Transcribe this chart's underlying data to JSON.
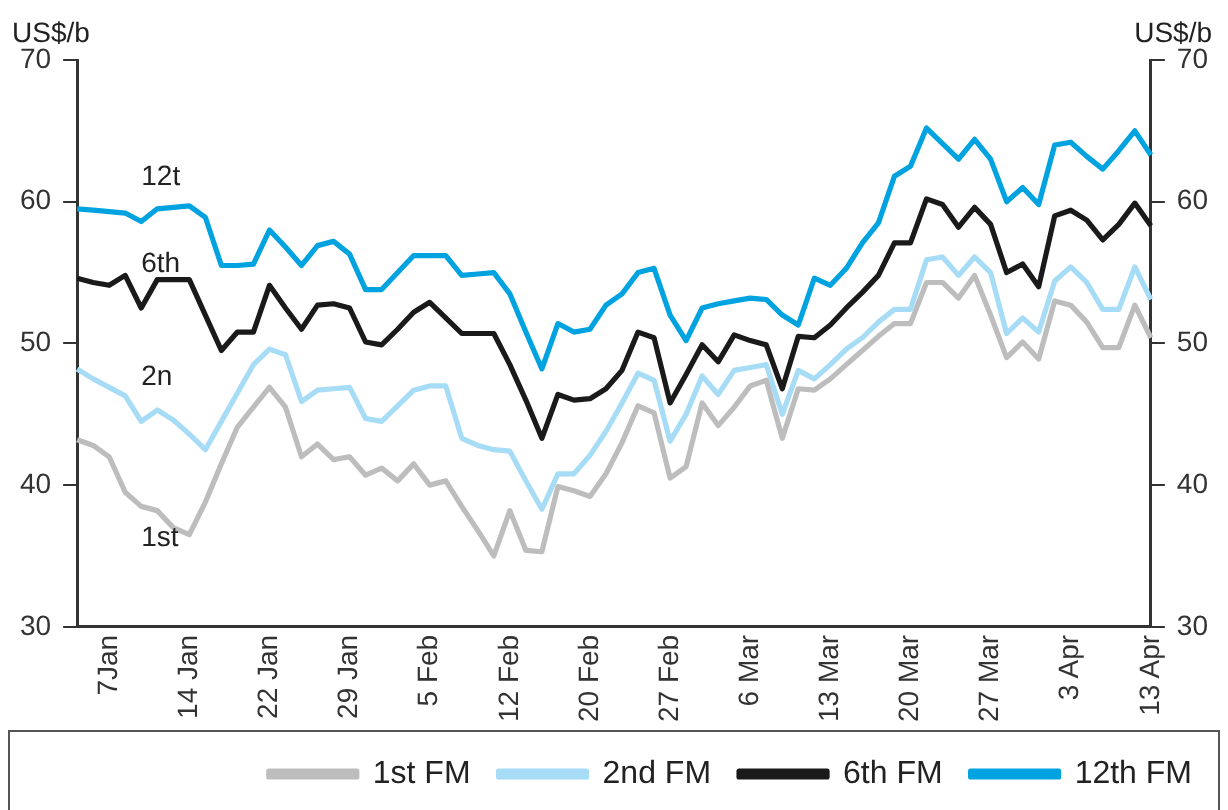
{
  "chart_data": {
    "type": "line",
    "ylabel": "US$/b",
    "y2label": "US$/b",
    "categories": [
      null,
      null,
      "7Jan",
      null,
      null,
      null,
      null,
      "14 Jan",
      null,
      null,
      null,
      null,
      "22 Jan",
      null,
      null,
      null,
      null,
      "29 Jan",
      null,
      null,
      null,
      null,
      "5 Feb",
      null,
      null,
      null,
      null,
      "12 Feb",
      null,
      null,
      null,
      null,
      "20 Feb",
      null,
      null,
      null,
      null,
      "27 Feb",
      null,
      null,
      null,
      null,
      "6 Mar",
      null,
      null,
      null,
      null,
      "13 Mar",
      null,
      null,
      null,
      null,
      "20 Mar",
      null,
      null,
      null,
      null,
      "27 Mar",
      null,
      null,
      null,
      null,
      "3 Apr",
      null,
      null,
      null,
      null,
      "13 Apr"
    ],
    "series": [
      {
        "name": "1st FM",
        "color": "#bdbdbd",
        "values": [
          43.2,
          42.8,
          42.0,
          39.5,
          38.5,
          38.2,
          37.0,
          36.5,
          38.8,
          41.5,
          44.1,
          45.5,
          46.9,
          45.5,
          42.0,
          42.9,
          41.8,
          42.0,
          40.7,
          41.2,
          40.3,
          41.5,
          40.0,
          40.3,
          38.5,
          36.8,
          35.0,
          38.2,
          35.4,
          35.3,
          39.9,
          39.6,
          39.2,
          40.8,
          43.0,
          45.6,
          45.1,
          40.5,
          41.3,
          45.8,
          44.2,
          45.5,
          47.0,
          47.4,
          43.3,
          46.8,
          46.7,
          47.5,
          48.5,
          49.5,
          50.5,
          51.4,
          51.4,
          54.3,
          54.3,
          53.2,
          54.8,
          52.0,
          49.0,
          50.1,
          48.9,
          53.0,
          52.7,
          51.5,
          49.7,
          49.7,
          52.7,
          50.4
        ]
      },
      {
        "name": "2nd FM",
        "color": "#a6dcf5",
        "values": [
          48.2,
          47.5,
          46.9,
          46.3,
          44.5,
          45.3,
          44.6,
          43.6,
          42.5,
          44.5,
          46.5,
          48.5,
          49.6,
          49.2,
          45.9,
          46.7,
          46.8,
          46.9,
          44.7,
          44.5,
          45.6,
          46.7,
          47.0,
          47.0,
          43.3,
          42.8,
          42.5,
          42.4,
          40.3,
          38.3,
          40.8,
          40.8,
          42.1,
          43.8,
          45.8,
          47.9,
          47.4,
          43.1,
          45.0,
          47.7,
          46.4,
          48.1,
          48.3,
          48.5,
          45.0,
          48.1,
          47.5,
          48.5,
          49.6,
          50.4,
          51.5,
          52.4,
          52.4,
          55.9,
          56.1,
          54.8,
          56.1,
          55.0,
          50.7,
          51.8,
          50.8,
          54.4,
          55.4,
          54.3,
          52.4,
          52.4,
          55.4,
          53.1
        ]
      },
      {
        "name": "6th FM",
        "color": "#1a1a1a",
        "values": [
          54.6,
          54.3,
          54.1,
          54.8,
          52.5,
          54.5,
          54.5,
          54.5,
          52.0,
          49.5,
          50.8,
          50.8,
          54.1,
          52.5,
          51.0,
          52.7,
          52.8,
          52.5,
          50.1,
          49.9,
          51.0,
          52.2,
          52.9,
          51.8,
          50.7,
          50.7,
          50.7,
          48.5,
          46.0,
          43.3,
          46.4,
          46.0,
          46.1,
          46.8,
          48.1,
          50.8,
          50.4,
          45.8,
          47.8,
          49.9,
          48.7,
          50.6,
          50.2,
          49.9,
          46.8,
          50.5,
          50.4,
          51.3,
          52.5,
          53.6,
          54.8,
          57.1,
          57.1,
          60.2,
          59.8,
          58.2,
          59.6,
          58.4,
          55.0,
          55.6,
          54.0,
          59.0,
          59.4,
          58.7,
          57.3,
          58.4,
          59.9,
          58.3
        ]
      },
      {
        "name": "12th FM",
        "color": "#00a3e0",
        "values": [
          59.5,
          59.4,
          59.3,
          59.2,
          58.6,
          59.5,
          59.6,
          59.7,
          58.9,
          55.5,
          55.5,
          55.6,
          58.0,
          56.8,
          55.5,
          56.9,
          57.2,
          56.3,
          53.8,
          53.8,
          55.0,
          56.2,
          56.2,
          56.2,
          54.8,
          54.9,
          55.0,
          53.5,
          50.8,
          48.2,
          51.4,
          50.8,
          51.0,
          52.7,
          53.5,
          55.0,
          55.3,
          52.0,
          50.2,
          52.5,
          52.8,
          53.0,
          53.2,
          53.1,
          52.0,
          51.3,
          54.6,
          54.1,
          55.3,
          57.1,
          58.5,
          61.8,
          62.5,
          65.2,
          64.1,
          63.0,
          64.4,
          63.0,
          60.0,
          61.0,
          59.8,
          64.0,
          64.2,
          63.2,
          62.3,
          63.6,
          65.0,
          63.3
        ]
      }
    ],
    "ylim": [
      30,
      70
    ],
    "yticks": [
      30,
      40,
      50,
      60,
      70
    ],
    "y2lim": [
      30,
      70
    ],
    "y2ticks": [
      30,
      40,
      50,
      60,
      70
    ],
    "annotations": [
      "12t",
      "6th",
      "2n",
      "1st"
    ],
    "grid": false,
    "legend": "bottom",
    "marker": "none",
    "line_style": "solid"
  }
}
